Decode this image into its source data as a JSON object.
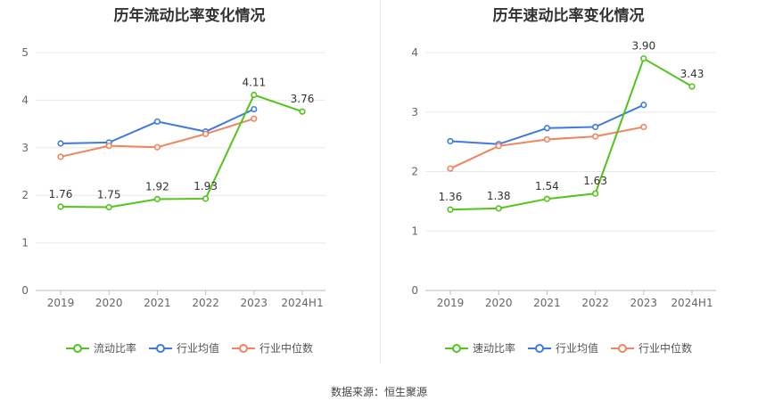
{
  "source_label": "数据来源：恒生聚源",
  "chart_data": [
    {
      "type": "line",
      "title": "历年流动比率变化情况",
      "categories": [
        "2019",
        "2020",
        "2021",
        "2022",
        "2023",
        "2024H1"
      ],
      "ylim": [
        0,
        5
      ],
      "yticks": [
        0,
        1,
        2,
        3,
        4,
        5
      ],
      "grid": true,
      "legend_position": "bottom",
      "series": [
        {
          "name": "流动比率",
          "color": "#52c41a",
          "values": [
            1.76,
            1.75,
            1.92,
            1.93,
            4.11,
            3.76
          ],
          "labels": [
            "1.76",
            "1.75",
            "1.92",
            "1.93",
            "4.11",
            "3.76"
          ]
        },
        {
          "name": "行业均值",
          "color": "#3e7ae0",
          "values": [
            3.09,
            3.11,
            3.55,
            3.34,
            3.81,
            null
          ]
        },
        {
          "name": "行业中位数",
          "color": "#f0845c",
          "values": [
            2.81,
            3.04,
            3.01,
            3.29,
            3.61,
            null
          ]
        }
      ]
    },
    {
      "type": "line",
      "title": "历年速动比率变化情况",
      "categories": [
        "2019",
        "2020",
        "2021",
        "2022",
        "2023",
        "2024H1"
      ],
      "ylim": [
        0,
        4
      ],
      "yticks": [
        0,
        1,
        2,
        3,
        4
      ],
      "grid": true,
      "legend_position": "bottom",
      "series": [
        {
          "name": "速动比率",
          "color": "#52c41a",
          "values": [
            1.36,
            1.38,
            1.54,
            1.63,
            3.9,
            3.43
          ],
          "labels": [
            "1.36",
            "1.38",
            "1.54",
            "1.63",
            "3.90",
            "3.43"
          ]
        },
        {
          "name": "行业均值",
          "color": "#3e7ae0",
          "values": [
            2.51,
            2.46,
            2.73,
            2.75,
            3.12,
            null
          ]
        },
        {
          "name": "行业中位数",
          "color": "#f0845c",
          "values": [
            2.05,
            2.43,
            2.54,
            2.59,
            2.75,
            null
          ]
        }
      ]
    }
  ]
}
